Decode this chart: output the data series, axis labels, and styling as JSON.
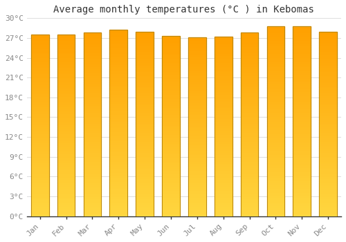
{
  "title": "Average monthly temperatures (°C ) in Kebomas",
  "months": [
    "Jan",
    "Feb",
    "Mar",
    "Apr",
    "May",
    "Jun",
    "Jul",
    "Aug",
    "Sep",
    "Oct",
    "Nov",
    "Dec"
  ],
  "values": [
    27.5,
    27.5,
    27.8,
    28.2,
    27.9,
    27.3,
    27.1,
    27.2,
    27.8,
    28.8,
    28.8,
    27.9
  ],
  "bar_color_bottom": "#FFD740",
  "bar_color_top": "#FFA000",
  "bar_edge_color": "#B8860B",
  "ylim": [
    0,
    30
  ],
  "yticks": [
    0,
    3,
    6,
    9,
    12,
    15,
    18,
    21,
    24,
    27,
    30
  ],
  "ytick_labels": [
    "0°C",
    "3°C",
    "6°C",
    "9°C",
    "12°C",
    "15°C",
    "18°C",
    "21°C",
    "24°C",
    "27°C",
    "30°C"
  ],
  "background_color": "#FFFFFF",
  "grid_color": "#DDDDDD",
  "title_fontsize": 10,
  "tick_fontsize": 8,
  "tick_color": "#888888"
}
